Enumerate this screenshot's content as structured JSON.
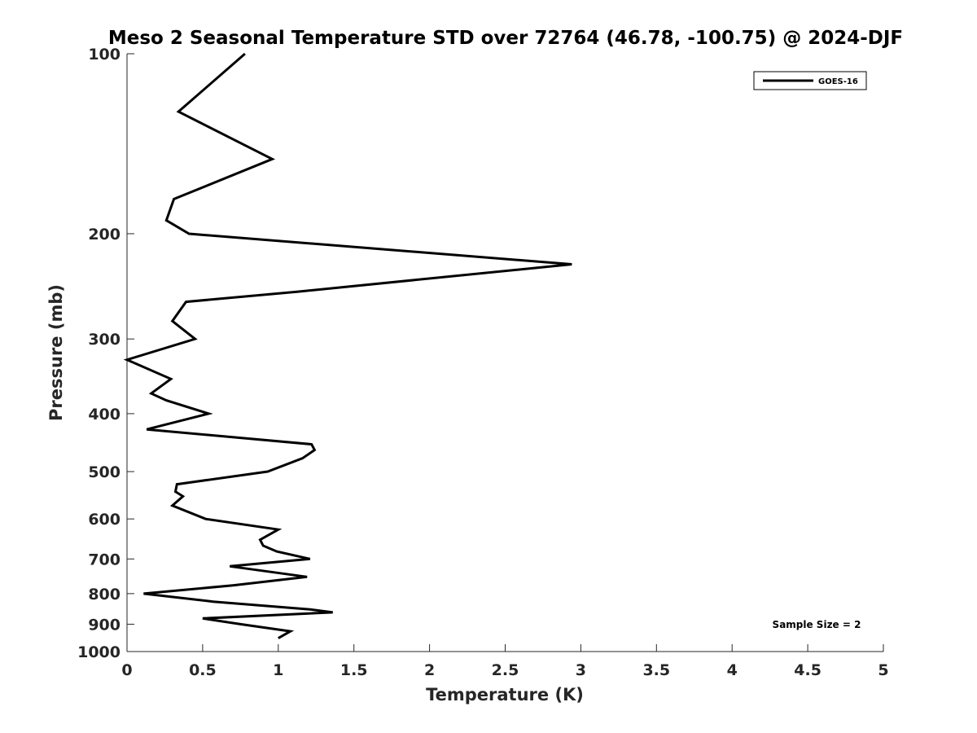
{
  "chart_data": {
    "type": "line",
    "title": "Meso 2 Seasonal Temperature STD over 72764 (46.78, -100.75) @ 2024-DJF",
    "xlabel": "Temperature (K)",
    "ylabel": "Pressure (mb)",
    "xlim": [
      0,
      5
    ],
    "ylim": [
      100,
      1000
    ],
    "y_scale": "log",
    "y_reversed": true,
    "grid": false,
    "legend_position": "top-right",
    "x_ticks": [
      "0",
      "0.5",
      "1",
      "1.5",
      "2",
      "2.5",
      "3",
      "3.5",
      "4",
      "4.5",
      "5"
    ],
    "y_ticks": [
      "100",
      "200",
      "300",
      "400",
      "500",
      "600",
      "700",
      "800",
      "900",
      "1000"
    ],
    "annotation": "Sample Size = 2",
    "series": [
      {
        "name": "GOES-16",
        "color": "#000000",
        "points": [
          [
            0.78,
            100
          ],
          [
            0.34,
            125
          ],
          [
            0.96,
            150
          ],
          [
            0.31,
            175
          ],
          [
            0.26,
            190
          ],
          [
            0.41,
            200
          ],
          [
            2.94,
            225
          ],
          [
            1.13,
            250
          ],
          [
            0.39,
            260
          ],
          [
            0.3,
            280
          ],
          [
            0.45,
            300
          ],
          [
            0.0,
            325
          ],
          [
            0.29,
            350
          ],
          [
            0.16,
            370
          ],
          [
            0.26,
            380
          ],
          [
            0.54,
            400
          ],
          [
            0.13,
            425
          ],
          [
            1.22,
            450
          ],
          [
            1.24,
            460
          ],
          [
            1.16,
            475
          ],
          [
            0.93,
            500
          ],
          [
            0.33,
            525
          ],
          [
            0.32,
            540
          ],
          [
            0.37,
            550
          ],
          [
            0.3,
            570
          ],
          [
            0.52,
            600
          ],
          [
            1.0,
            625
          ],
          [
            0.88,
            650
          ],
          [
            0.9,
            665
          ],
          [
            0.99,
            680
          ],
          [
            1.21,
            700
          ],
          [
            0.68,
            720
          ],
          [
            1.19,
            750
          ],
          [
            0.7,
            775
          ],
          [
            0.11,
            800
          ],
          [
            0.57,
            825
          ],
          [
            1.21,
            850
          ],
          [
            1.36,
            860
          ],
          [
            0.5,
            880
          ],
          [
            0.75,
            900
          ],
          [
            1.08,
            925
          ],
          [
            1.0,
            950
          ]
        ]
      }
    ]
  }
}
